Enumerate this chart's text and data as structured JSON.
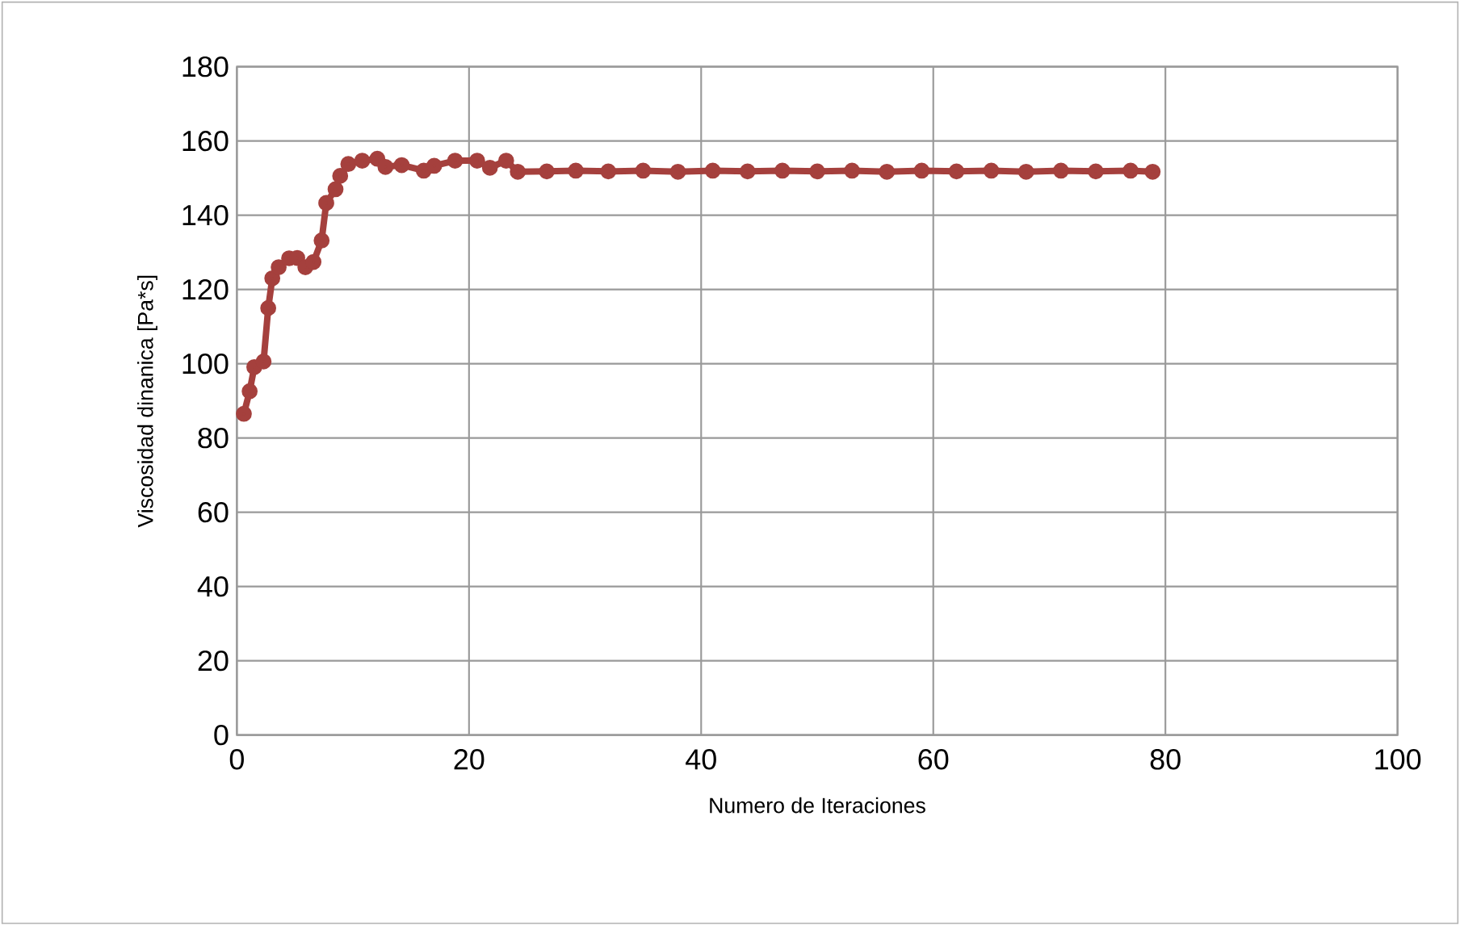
{
  "chart_data": {
    "type": "line",
    "xlabel": "Numero de Iteraciones",
    "ylabel": "Viscosidad dinanica [Pa*s]",
    "xlim": [
      0,
      100
    ],
    "xticks": [
      0,
      20,
      40,
      60,
      80,
      100
    ],
    "ylim": [
      0,
      180
    ],
    "yticks": [
      0,
      20,
      40,
      60,
      80,
      100,
      120,
      140,
      160,
      180
    ],
    "grid": true,
    "marker": "circle",
    "line_style": "solid",
    "series": [
      {
        "color": "#a5403d",
        "x": [
          0.6,
          1.1,
          1.5,
          2.3,
          2.7,
          3.05,
          3.6,
          4.5,
          5.2,
          5.9,
          6.6,
          7.3,
          7.7,
          8.5,
          8.9,
          9.6,
          10.8,
          12.1,
          12.8,
          14.2,
          16.1,
          17,
          18.8,
          20.7,
          21.8,
          23.2,
          24.2,
          26.7,
          29.2,
          32,
          35,
          38,
          41,
          44,
          47,
          50,
          53,
          56,
          59,
          62,
          65,
          68,
          71,
          74,
          77,
          78.9
        ],
        "values": [
          86.5,
          92.6,
          99.1,
          100.6,
          115,
          123,
          126,
          128.4,
          128.5,
          126,
          127.4,
          133.2,
          143.3,
          147,
          150.6,
          153.8,
          154.7,
          155.2,
          153,
          153.5,
          152,
          153.3,
          154.7,
          154.7,
          152.8,
          154.7,
          151.7,
          151.8,
          152,
          151.8,
          152,
          151.7,
          152,
          151.8,
          152,
          151.8,
          152,
          151.7,
          152,
          151.8,
          152,
          151.7,
          152,
          151.8,
          152,
          151.7
        ]
      }
    ]
  }
}
